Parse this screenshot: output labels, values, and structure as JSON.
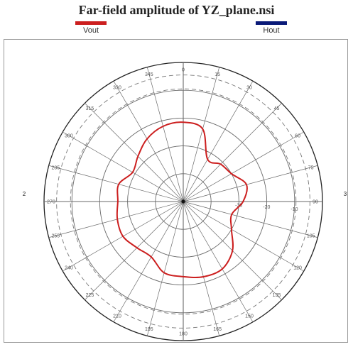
{
  "title": "Far-field amplitude of YZ_plane.nsi",
  "legend": [
    {
      "label": "Vout",
      "color": "#cc1f1f"
    },
    {
      "label": "Hout",
      "color": "#0a1a78"
    }
  ],
  "chart_data": {
    "type": "polar",
    "title": "Far-field amplitude of YZ_plane.nsi",
    "angle_ticks": [
      "0",
      "15",
      "30",
      "45",
      "60",
      "75",
      "90",
      "105",
      "120",
      "135",
      "150",
      "165",
      "180",
      "195",
      "210",
      "225",
      "240",
      "255",
      "270",
      "285",
      "300",
      "315",
      "330",
      "345"
    ],
    "radial_tick_labels": [
      "-10",
      "-20",
      "-30"
    ],
    "side_labels": {
      "left": "2",
      "right": "3"
    },
    "grid": true,
    "series": [
      {
        "name": "Vout",
        "color": "#cc1f1f",
        "angles": [
          0,
          15,
          30,
          45,
          60,
          75,
          90,
          105,
          120,
          135,
          150,
          165,
          180,
          195,
          210,
          225,
          240,
          255,
          270,
          285,
          300,
          315,
          330,
          345
        ],
        "radius_fraction": [
          0.57,
          0.54,
          0.35,
          0.38,
          0.4,
          0.47,
          0.43,
          0.36,
          0.4,
          0.5,
          0.56,
          0.56,
          0.54,
          0.53,
          0.46,
          0.47,
          0.5,
          0.49,
          0.47,
          0.48,
          0.42,
          0.46,
          0.52,
          0.56
        ]
      }
    ],
    "dashed_circles_fraction": [
      0.81,
      0.91
    ]
  }
}
